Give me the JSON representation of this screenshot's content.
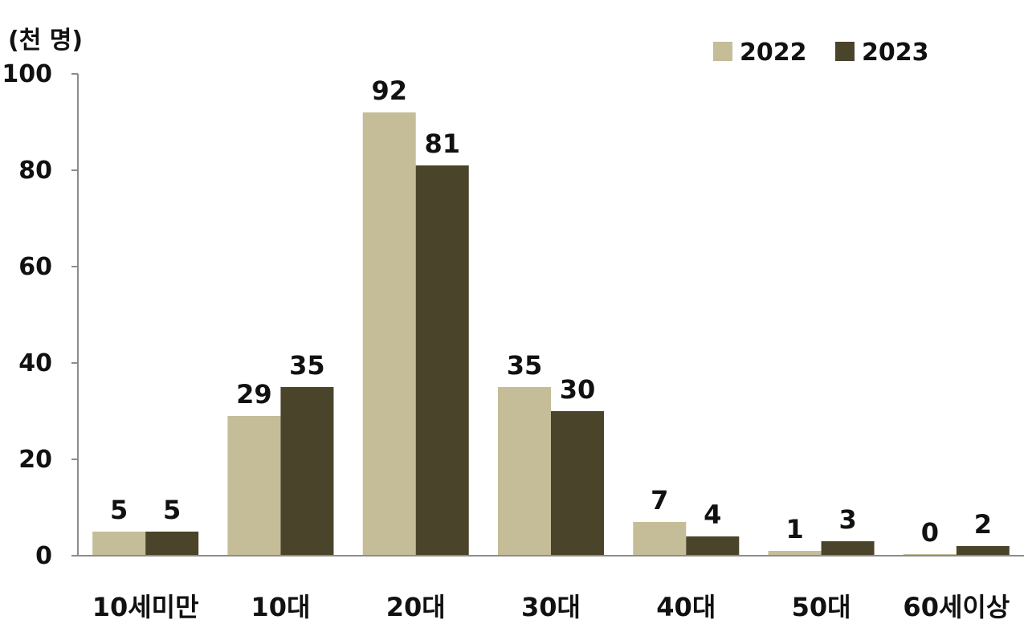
{
  "chart_data": {
    "type": "bar",
    "unit_label": "(천 명)",
    "categories": [
      "10세미만",
      "10대",
      "20대",
      "30대",
      "40대",
      "50대",
      "60세이상"
    ],
    "series": [
      {
        "name": "2022",
        "color": "#c4bd97",
        "values": [
          5,
          29,
          92,
          35,
          7,
          1,
          0
        ],
        "labels": [
          "5",
          "29",
          "92",
          "35",
          "7",
          "1",
          "0"
        ]
      },
      {
        "name": "2023",
        "color": "#4a442b",
        "values": [
          5,
          35,
          81,
          30,
          4,
          3,
          2
        ],
        "labels": [
          "5",
          "35",
          "81",
          "30",
          "4",
          "3",
          "2"
        ]
      }
    ],
    "yticks": [
      "0",
      "20",
      "40",
      "60",
      "80",
      "100"
    ],
    "ylim": [
      0,
      100
    ],
    "legend_position": "top-right",
    "grid": false
  }
}
